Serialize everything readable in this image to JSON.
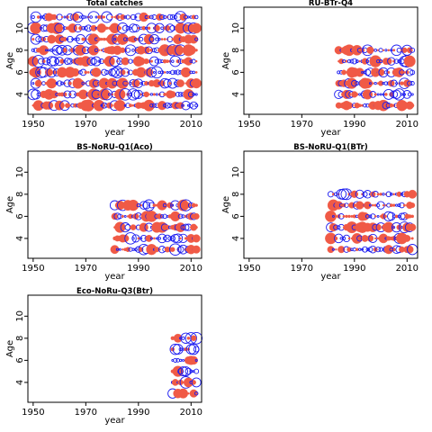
{
  "colors": {
    "positive": "#f05a46",
    "negative": "#1c1cf0",
    "frame": "#000000"
  },
  "chart_data": [
    {
      "type": "scatter",
      "title": "Total catches",
      "xlabel": "year",
      "ylabel": "Age",
      "xlim": [
        1948,
        2014
      ],
      "ylim": [
        2.2,
        11.9
      ],
      "xticks": [
        1950,
        1970,
        1990,
        2010
      ],
      "yticks": [
        4,
        6,
        8,
        10
      ],
      "x": [
        1950,
        2012
      ],
      "y": [
        3,
        11
      ],
      "note": "bubble residuals for all years 1950-2012, ages 3-11"
    },
    {
      "type": "scatter",
      "title": "RU-BTr-Q4",
      "xlabel": "year",
      "ylabel": "Age",
      "xlim": [
        1948,
        2014
      ],
      "ylim": [
        2.2,
        11.9
      ],
      "xticks": [
        1950,
        1970,
        1990,
        2010
      ],
      "yticks": [
        4,
        6,
        8,
        10
      ],
      "x": [
        1984,
        2012
      ],
      "y": [
        3,
        8
      ]
    },
    {
      "type": "scatter",
      "title": "BS-NoRU-Q1(Aco)",
      "xlabel": "year",
      "ylabel": "Age",
      "xlim": [
        1948,
        2014
      ],
      "ylim": [
        2.2,
        11.9
      ],
      "xticks": [
        1950,
        1970,
        1990,
        2010
      ],
      "yticks": [
        4,
        6,
        8,
        10
      ],
      "x": [
        1981,
        2012
      ],
      "y": [
        3,
        7
      ]
    },
    {
      "type": "scatter",
      "title": "BS-NoRU-Q1(BTr)",
      "xlabel": "year",
      "ylabel": "Age",
      "xlim": [
        1948,
        2014
      ],
      "ylim": [
        2.2,
        11.9
      ],
      "xticks": [
        1950,
        1970,
        1990,
        2010
      ],
      "yticks": [
        4,
        6,
        8,
        10
      ],
      "x": [
        1981,
        2012
      ],
      "y": [
        3,
        8
      ]
    },
    {
      "type": "scatter",
      "title": "Eco-NoRu-Q3(Btr)",
      "xlabel": "year",
      "ylabel": "Age",
      "xlim": [
        1948,
        2014
      ],
      "ylim": [
        2.2,
        11.9
      ],
      "xticks": [
        1950,
        1970,
        1990,
        2010
      ],
      "yticks": [
        4,
        6,
        8,
        10
      ],
      "x": [
        2003,
        2012
      ],
      "y": [
        3,
        8
      ]
    }
  ]
}
